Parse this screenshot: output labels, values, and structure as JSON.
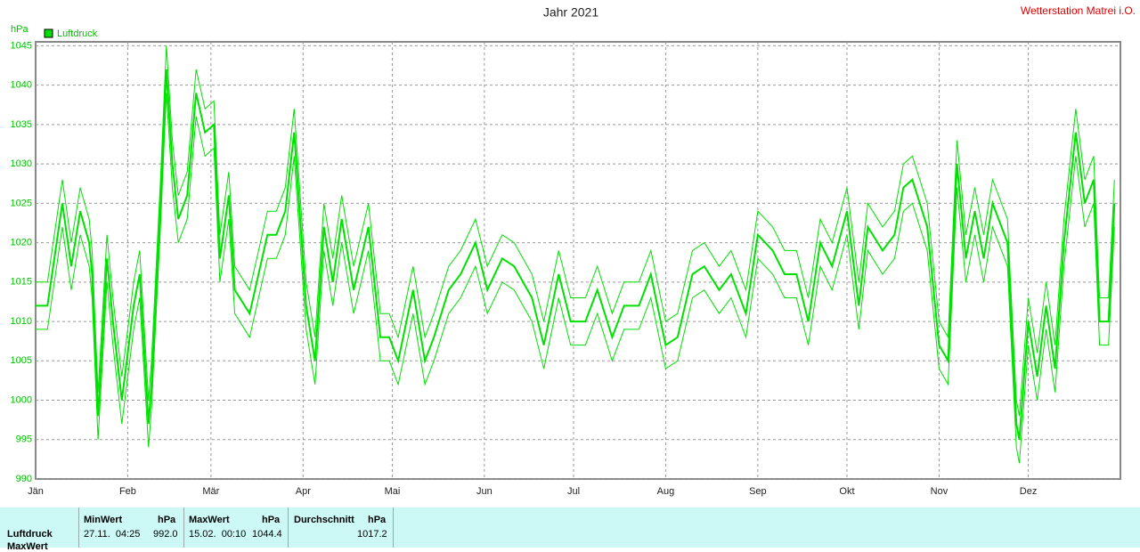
{
  "chart_data": {
    "type": "line",
    "title": "Jahr 2021",
    "station": "Wetterstation Matrei i.O.",
    "y_label": "hPa",
    "x": [
      0,
      4,
      9,
      12,
      15,
      18,
      19,
      21,
      24,
      26,
      29,
      33,
      35,
      38,
      39,
      42,
      44,
      46,
      48,
      51,
      54,
      57,
      60,
      62,
      65,
      67,
      72,
      78,
      81,
      84,
      87,
      91,
      94,
      97,
      100,
      103,
      107,
      112,
      116,
      119,
      122,
      127,
      131,
      134,
      139,
      143,
      148,
      152,
      157,
      161,
      167,
      171,
      176,
      180,
      185,
      189,
      194,
      198,
      203,
      207,
      212,
      216,
      221,
      225,
      230,
      234,
      239,
      243,
      248,
      252,
      256,
      260,
      264,
      268,
      273,
      277,
      280,
      285,
      289,
      292,
      295,
      300,
      304,
      307,
      310,
      313,
      316,
      319,
      322,
      327,
      330,
      331,
      334,
      337,
      340,
      343,
      346,
      350,
      353,
      356,
      358,
      361,
      363
    ],
    "series": [
      {
        "name": "Luftdruck",
        "color": "#00e000",
        "values": [
          1012,
          1012,
          1025,
          1017,
          1024,
          1020,
          1016,
          998,
          1018,
          1010,
          1000,
          1012,
          1016,
          997,
          1002,
          1025,
          1042,
          1030,
          1023,
          1026,
          1039,
          1034,
          1035,
          1018,
          1026,
          1014,
          1011,
          1021,
          1021,
          1024,
          1034,
          1012,
          1005,
          1022,
          1015,
          1023,
          1014,
          1022,
          1008,
          1008,
          1005,
          1014,
          1005,
          1008,
          1014,
          1016,
          1020,
          1014,
          1018,
          1017,
          1013,
          1007,
          1016,
          1010,
          1010,
          1014,
          1008,
          1012,
          1012,
          1016,
          1007,
          1008,
          1016,
          1017,
          1014,
          1016,
          1011,
          1021,
          1019,
          1016,
          1016,
          1010,
          1020,
          1017,
          1024,
          1012,
          1022,
          1019,
          1021,
          1027,
          1028,
          1022,
          1007,
          1005,
          1030,
          1018,
          1024,
          1018,
          1025,
          1020,
          997,
          995,
          1010,
          1003,
          1012,
          1004,
          1020,
          1034,
          1025,
          1028,
          1010,
          1010,
          1025
        ]
      },
      {
        "color": "#00e000",
        "values": [
          1015,
          1015,
          1028,
          1020,
          1027,
          1023,
          1019,
          1001,
          1021,
          1013,
          1003,
          1015,
          1019,
          1000,
          1005,
          1028,
          1045,
          1033,
          1026,
          1029,
          1042,
          1037,
          1038,
          1021,
          1029,
          1017,
          1014,
          1024,
          1024,
          1027,
          1037,
          1015,
          1008,
          1025,
          1018,
          1026,
          1017,
          1025,
          1011,
          1011,
          1008,
          1017,
          1008,
          1011,
          1017,
          1019,
          1023,
          1017,
          1021,
          1020,
          1016,
          1010,
          1019,
          1013,
          1013,
          1017,
          1011,
          1015,
          1015,
          1019,
          1010,
          1011,
          1019,
          1020,
          1017,
          1019,
          1014,
          1024,
          1022,
          1019,
          1019,
          1013,
          1023,
          1020,
          1027,
          1015,
          1025,
          1022,
          1024,
          1030,
          1031,
          1025,
          1010,
          1008,
          1033,
          1021,
          1027,
          1021,
          1028,
          1023,
          1000,
          998,
          1013,
          1006,
          1015,
          1007,
          1023,
          1037,
          1028,
          1031,
          1013,
          1013,
          1028
        ]
      },
      {
        "color": "#00e000",
        "values": [
          1009,
          1009,
          1022,
          1014,
          1021,
          1017,
          1013,
          995,
          1015,
          1007,
          997,
          1009,
          1013,
          994,
          999,
          1022,
          1039,
          1027,
          1020,
          1023,
          1036,
          1031,
          1032,
          1015,
          1023,
          1011,
          1008,
          1018,
          1018,
          1021,
          1031,
          1009,
          1002,
          1019,
          1012,
          1020,
          1011,
          1019,
          1005,
          1005,
          1002,
          1011,
          1002,
          1005,
          1011,
          1013,
          1017,
          1011,
          1015,
          1014,
          1010,
          1004,
          1013,
          1007,
          1007,
          1011,
          1005,
          1009,
          1009,
          1013,
          1004,
          1005,
          1013,
          1014,
          1011,
          1013,
          1008,
          1018,
          1016,
          1013,
          1013,
          1007,
          1017,
          1014,
          1021,
          1009,
          1019,
          1016,
          1018,
          1024,
          1025,
          1019,
          1004,
          1002,
          1027,
          1015,
          1021,
          1015,
          1022,
          1017,
          994,
          992,
          1007,
          1000,
          1009,
          1001,
          1017,
          1031,
          1022,
          1025,
          1007,
          1007,
          1022
        ]
      }
    ],
    "xlim": [
      0,
      365
    ],
    "xticks": [
      {
        "value": 0,
        "label": "Jän"
      },
      {
        "value": 31,
        "label": "Feb"
      },
      {
        "value": 59,
        "label": "Mär"
      },
      {
        "value": 90,
        "label": "Apr"
      },
      {
        "value": 120,
        "label": "Mai"
      },
      {
        "value": 151,
        "label": "Jun"
      },
      {
        "value": 181,
        "label": "Jul"
      },
      {
        "value": 212,
        "label": "Aug"
      },
      {
        "value": 243,
        "label": "Sep"
      },
      {
        "value": 273,
        "label": "Okt"
      },
      {
        "value": 304,
        "label": "Nov"
      },
      {
        "value": 334,
        "label": "Dez"
      }
    ],
    "ylim": [
      990,
      1045.5
    ],
    "yticks": [
      990,
      995,
      1000,
      1005,
      1010,
      1015,
      1020,
      1025,
      1030,
      1035,
      1040,
      1045
    ],
    "grid": true
  },
  "table": {
    "row_label": "Luftdruck",
    "next_row_label": "MaxWert",
    "min": {
      "header": "MinWert",
      "unit": "hPa",
      "time": "27.11.  04:25",
      "value": "992.0"
    },
    "max": {
      "header": "MaxWert",
      "unit": "hPa",
      "time": "15.02.  00:10",
      "value": "1044.4"
    },
    "avg": {
      "header": "Durchschnitt",
      "unit": "hPa",
      "value": "1017.2"
    }
  }
}
